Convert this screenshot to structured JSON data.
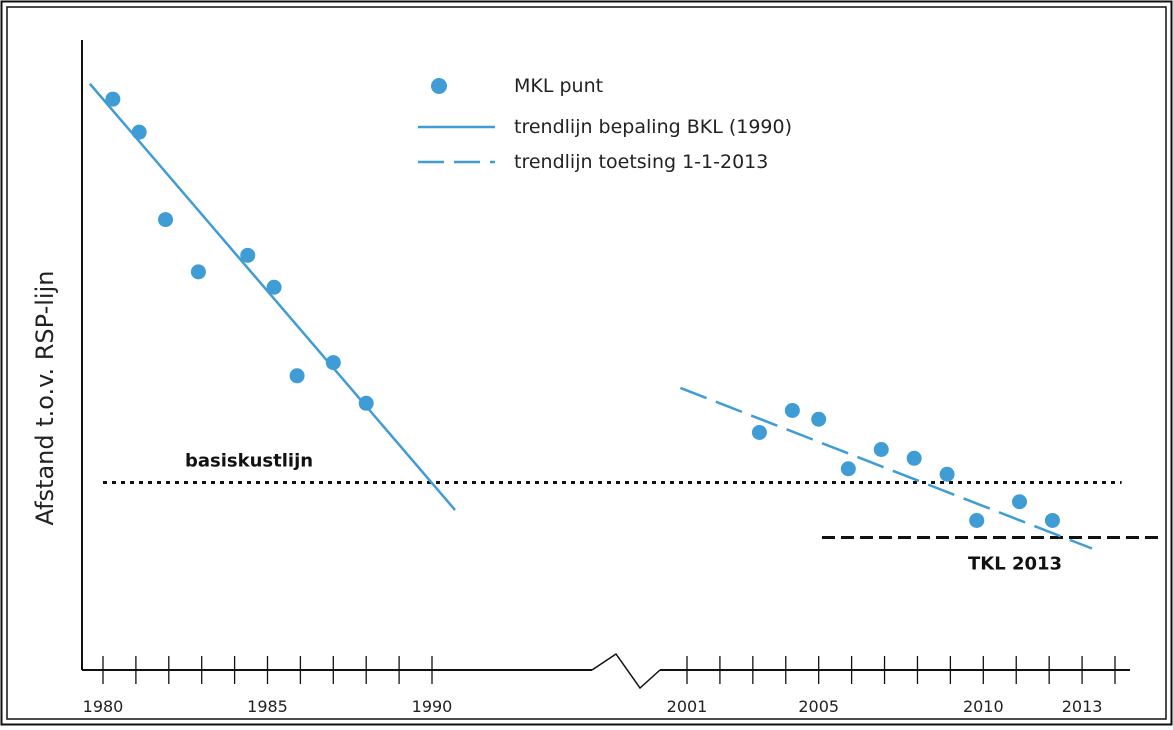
{
  "chart_data": {
    "type": "scatter",
    "title": "",
    "xlabel": "",
    "ylabel": "Afstand t.o.v. RSP-lijn",
    "grid": false,
    "axis_break": {
      "from": 1990,
      "to": 2001
    },
    "x_ticks": {
      "first_segment": [
        1980,
        1981,
        1982,
        1983,
        1984,
        1985,
        1986,
        1987,
        1988,
        1989,
        1990
      ],
      "second_segment": [
        2001,
        2002,
        2003,
        2004,
        2005,
        2006,
        2007,
        2008,
        2009,
        2010,
        2011,
        2012,
        2013,
        2014
      ]
    },
    "x_tick_labels": [
      "1980",
      "1985",
      "1990",
      "2001",
      "2005",
      "2010",
      "2013"
    ],
    "legend": {
      "placement": "top-center",
      "entries": [
        {
          "label": "MKL punt",
          "marker": "dot"
        },
        {
          "label": "trendlijn bepaling BKL (1990)",
          "marker": "solid-line"
        },
        {
          "label": "trendlijn toetsing 1-1-2013",
          "marker": "dashed-line"
        }
      ]
    },
    "series": [
      {
        "name": "MKL punt",
        "kind": "points",
        "x": [
          1980.3,
          1981.1,
          1981.9,
          1982.9,
          1984.4,
          1985.2,
          1985.9,
          1987.0,
          1988.0,
          2003.2,
          2004.2,
          2005.0,
          2005.9,
          2006.9,
          2007.9,
          2008.9,
          2009.8,
          2011.1,
          2012.1
        ],
        "y": [
          94.7,
          88.7,
          72.8,
          63.3,
          66.3,
          60.5,
          44.4,
          46.8,
          39.4,
          34.1,
          38.1,
          36.5,
          27.5,
          31.0,
          29.4,
          26.5,
          18.1,
          21.5,
          18.1
        ]
      },
      {
        "name": "trendlijn bepaling BKL (1990)",
        "kind": "solid-line",
        "x": [
          1979.6,
          1990.7
        ],
        "y": [
          97.5,
          20.0
        ]
      },
      {
        "name": "trendlijn toetsing 1-1-2013",
        "kind": "dashed-line",
        "x": [
          2000.8,
          2013.3
        ],
        "y": [
          42.2,
          13.0
        ]
      }
    ],
    "reference_lines": [
      {
        "label": "basiskustlijn",
        "style": "dotted",
        "y": 25.0,
        "x": [
          1980.0,
          2014.2
        ]
      },
      {
        "label": "TKL 2013",
        "style": "dashed",
        "y": 15.0,
        "x": [
          2005.1,
          2015.4
        ]
      }
    ],
    "ylim": [
      0,
      100
    ]
  },
  "colors": {
    "series": "#3f9cd4",
    "reference": "#111111",
    "axis": "#111111",
    "frame": "#111111"
  }
}
